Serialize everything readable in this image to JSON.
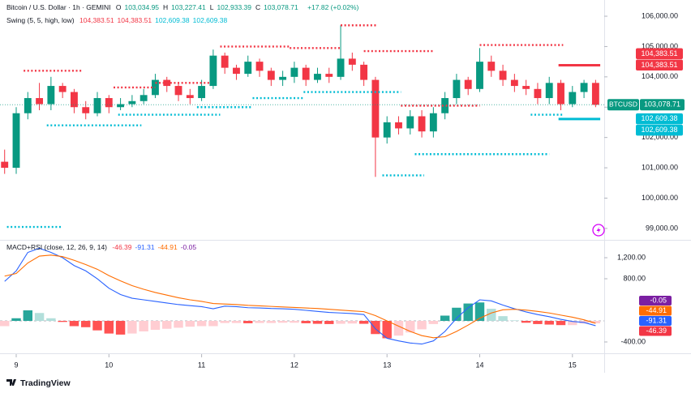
{
  "brand": "TradingView",
  "chart_data": [
    {
      "type": "candlestick",
      "title": "Bitcoin / U.S. Dollar · 1h · GEMINI",
      "ohlc": [
        {
          "label": "O",
          "value": "103,034.95"
        },
        {
          "label": "H",
          "value": "103,227.41"
        },
        {
          "label": "L",
          "value": "102,933.39"
        },
        {
          "label": "C",
          "value": "103,078.71"
        }
      ],
      "change": "+17.82 (+0.02%)",
      "up_color": "#089981",
      "down_color": "#f23645",
      "x": [
        8.875,
        9,
        9.125,
        9.25,
        9.375,
        9.5,
        9.625,
        9.75,
        9.875,
        10,
        10.125,
        10.25,
        10.375,
        10.5,
        10.625,
        10.75,
        10.875,
        11,
        11.125,
        11.25,
        11.375,
        11.5,
        11.625,
        11.75,
        11.875,
        12,
        12.125,
        12.25,
        12.375,
        12.5,
        12.625,
        12.75,
        12.875,
        13,
        13.125,
        13.25,
        13.375,
        13.5,
        13.625,
        13.75,
        13.875,
        14,
        14.125,
        14.25,
        14.375,
        14.5,
        14.625,
        14.75,
        14.875,
        15,
        15.125,
        15.25
      ],
      "open": [
        101200,
        101000,
        102800,
        103300,
        103100,
        103700,
        103500,
        103000,
        102800,
        103300,
        103000,
        103100,
        103200,
        103400,
        103900,
        103700,
        103400,
        103300,
        103700,
        104700,
        104300,
        104100,
        104500,
        104200,
        103900,
        104000,
        104300,
        103900,
        104100,
        104000,
        104600,
        104400,
        103900,
        102000,
        102500,
        102300,
        102700,
        102200,
        102800,
        103300,
        103900,
        103600,
        104500,
        104200,
        103900,
        103700,
        103600,
        103300,
        103800,
        103100,
        103500,
        103800
      ],
      "high": [
        101600,
        103000,
        103500,
        103800,
        104000,
        103800,
        103600,
        103200,
        103500,
        103400,
        103300,
        103400,
        103600,
        104100,
        104000,
        103800,
        103600,
        103900,
        104900,
        104800,
        104400,
        104700,
        104600,
        104300,
        104200,
        104500,
        104400,
        104300,
        104300,
        105700,
        104800,
        104500,
        104000,
        102700,
        102700,
        102900,
        102900,
        103000,
        103500,
        104100,
        104000,
        104950,
        104700,
        104400,
        104100,
        103900,
        103800,
        104000,
        103900,
        103700,
        103900,
        103900
      ],
      "low": [
        100800,
        100800,
        102600,
        102900,
        102900,
        103300,
        102800,
        102600,
        102700,
        102800,
        102900,
        103000,
        103100,
        103300,
        103500,
        103200,
        103100,
        103200,
        103600,
        104100,
        103900,
        104000,
        104000,
        103700,
        103700,
        103800,
        103700,
        103800,
        103800,
        103900,
        104200,
        103700,
        100700,
        101800,
        102100,
        102100,
        102000,
        102000,
        102600,
        103100,
        103400,
        103500,
        104000,
        103700,
        103500,
        103400,
        103100,
        103100,
        102900,
        103000,
        103300,
        103000
      ],
      "close": [
        101000,
        102800,
        103300,
        103100,
        103700,
        103500,
        103000,
        102800,
        103300,
        103000,
        103100,
        103200,
        103400,
        103900,
        103700,
        103400,
        103300,
        103700,
        104700,
        104300,
        104100,
        104500,
        104200,
        103900,
        104000,
        104300,
        103900,
        104100,
        104000,
        104600,
        104400,
        103900,
        102000,
        102500,
        102300,
        102700,
        102200,
        102800,
        103300,
        103900,
        103600,
        104500,
        104200,
        103900,
        103700,
        103600,
        103300,
        103800,
        103100,
        103500,
        103800,
        103078.71
      ],
      "xlim": [
        8.825,
        15.343
      ],
      "xticks": [
        9,
        10,
        11,
        12,
        13,
        14,
        15
      ],
      "ylim": [
        98650,
        106535
      ],
      "yticks": [
        {
          "value": 99000,
          "label": "99,000.00"
        },
        {
          "value": 100000,
          "label": "100,000.00"
        },
        {
          "value": 101000,
          "label": "101,000.00"
        },
        {
          "value": 102000,
          "label": "102,000.00"
        },
        {
          "value": 103000,
          "label": "103,000.00"
        },
        {
          "value": 104000,
          "label": "104,000.00"
        },
        {
          "value": 105000,
          "label": "105,000.00"
        },
        {
          "value": 106000,
          "label": "106,000.00"
        }
      ],
      "last": {
        "symbol": "BTCUSD",
        "value": 103078.71,
        "label": "103,078.71",
        "color": "#089981"
      },
      "swing_title": "Swing (5, 5, high, low)",
      "swing_high_color": "#f23645",
      "swing_low_color": "#00bcd4",
      "swing_levels": [
        {
          "value": 104383.51,
          "label": "104,383.51",
          "color": "#f23645",
          "x": [
            14.85,
            15.3
          ]
        },
        {
          "value": 102609.38,
          "label": "102,609.38",
          "color": "#00bcd4",
          "x": [
            14.85,
            15.3
          ]
        }
      ],
      "swing_highs": [
        {
          "x": [
            9.08,
            9.72
          ],
          "value": 104200
        },
        {
          "x": [
            10.05,
            10.5
          ],
          "value": 103650
        },
        {
          "x": [
            10.5,
            11.1
          ],
          "value": 103800
        },
        {
          "x": [
            11.2,
            11.95
          ],
          "value": 105000
        },
        {
          "x": [
            11.95,
            12.5
          ],
          "value": 104950
        },
        {
          "x": [
            12.5,
            12.9
          ],
          "value": 105700
        },
        {
          "x": [
            12.75,
            13.5
          ],
          "value": 104850
        },
        {
          "x": [
            13.15,
            14.0
          ],
          "value": 103050
        },
        {
          "x": [
            14.0,
            14.9
          ],
          "value": 105050
        }
      ],
      "swing_lows": [
        {
          "x": [
            8.9,
            9.5
          ],
          "value": 99050
        },
        {
          "x": [
            9.33,
            10.35
          ],
          "value": 102400
        },
        {
          "x": [
            10.1,
            11.2
          ],
          "value": 102750
        },
        {
          "x": [
            10.95,
            11.55
          ],
          "value": 103000
        },
        {
          "x": [
            11.55,
            12.1
          ],
          "value": 103300
        },
        {
          "x": [
            12.1,
            13.15
          ],
          "value": 103500
        },
        {
          "x": [
            12.95,
            13.4
          ],
          "value": 100750
        },
        {
          "x": [
            13.3,
            14.75
          ],
          "value": 101450
        },
        {
          "x": [
            14.55,
            14.9
          ],
          "value": 102750
        }
      ]
    },
    {
      "type": "macd",
      "title": "MACD+RSI (close, 12, 26, 9, 14)",
      "readouts": [
        {
          "label": "-46.39",
          "color": "#f23645"
        },
        {
          "label": "-91.31",
          "color": "#2962ff"
        },
        {
          "label": "-44.91",
          "color": "#ff6d00"
        },
        {
          "label": "-0.05",
          "color": "#7b1fa2"
        }
      ],
      "x": [
        8.875,
        9,
        9.125,
        9.25,
        9.375,
        9.5,
        9.625,
        9.75,
        9.875,
        10,
        10.125,
        10.25,
        10.375,
        10.5,
        10.625,
        10.75,
        10.875,
        11,
        11.125,
        11.25,
        11.375,
        11.5,
        11.625,
        11.75,
        11.875,
        12,
        12.125,
        12.25,
        12.375,
        12.5,
        12.625,
        12.75,
        12.875,
        13,
        13.125,
        13.25,
        13.375,
        13.5,
        13.625,
        13.75,
        13.875,
        14,
        14.125,
        14.25,
        14.375,
        14.5,
        14.625,
        14.75,
        14.875,
        15,
        15.125,
        15.25
      ],
      "series": [
        {
          "name": "Histogram",
          "kind": "histogram",
          "colors": [
            "#26a69a",
            "#b2dfdb",
            "#ff5252",
            "#ffcdd2"
          ],
          "values": [
            -100,
            50,
            200,
            150,
            50,
            -20,
            -100,
            -120,
            -180,
            -240,
            -260,
            -240,
            -200,
            -170,
            -150,
            -130,
            -110,
            -100,
            -100,
            -40,
            -40,
            -45,
            -40,
            -40,
            -35,
            -35,
            -45,
            -55,
            -60,
            -55,
            -50,
            -55,
            -250,
            -330,
            -280,
            -220,
            -160,
            -60,
            100,
            250,
            330,
            350,
            230,
            90,
            10,
            -35,
            -60,
            -70,
            -80,
            -80,
            -50,
            -46.39
          ]
        },
        {
          "name": "MACD",
          "kind": "line",
          "color": "#2962ff",
          "values": [
            750,
            950,
            1300,
            1380,
            1300,
            1200,
            1050,
            950,
            800,
            620,
            500,
            430,
            400,
            370,
            340,
            310,
            290,
            270,
            230,
            280,
            270,
            250,
            245,
            235,
            230,
            220,
            200,
            180,
            160,
            150,
            140,
            120,
            -150,
            -330,
            -380,
            -420,
            -440,
            -380,
            -200,
            50,
            250,
            400,
            380,
            300,
            230,
            170,
            120,
            80,
            30,
            -10,
            -30,
            -91.31
          ]
        },
        {
          "name": "Signal",
          "kind": "line",
          "color": "#ff6d00",
          "values": [
            850,
            900,
            1100,
            1230,
            1250,
            1220,
            1150,
            1070,
            980,
            860,
            760,
            670,
            600,
            540,
            490,
            440,
            400,
            370,
            330,
            320,
            310,
            295,
            285,
            275,
            265,
            255,
            245,
            235,
            220,
            205,
            190,
            175,
            100,
            0,
            -100,
            -200,
            -280,
            -320,
            -300,
            -200,
            -80,
            50,
            150,
            210,
            220,
            205,
            180,
            150,
            110,
            70,
            20,
            -44.91
          ]
        }
      ],
      "xlim": [
        8.825,
        15.343
      ],
      "ylim": [
        -600,
        1508
      ],
      "yticks": [
        {
          "value": -400,
          "label": "-400.00"
        },
        {
          "value": 800,
          "label": "800.00"
        },
        {
          "value": 1200,
          "label": "1,200.00"
        }
      ]
    }
  ]
}
